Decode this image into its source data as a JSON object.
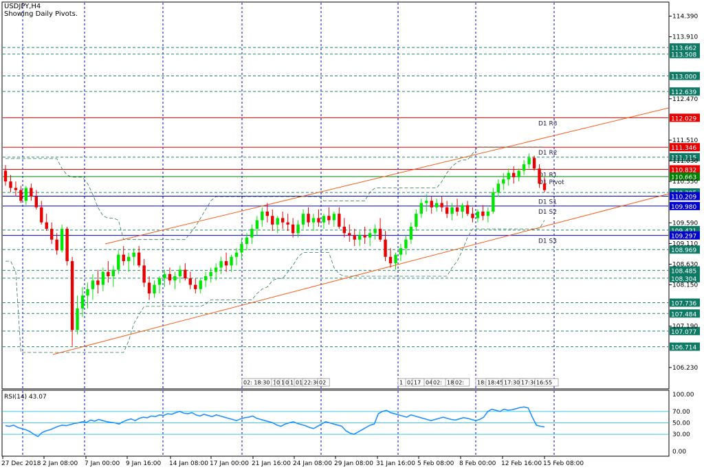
{
  "header": {
    "symbol": "USDJPY,H4",
    "subtitle": "Showing Daily Pivots."
  },
  "rsi": {
    "label": "RSI(14) 43.07",
    "levels": [
      100.0,
      70.0,
      50.0,
      30.0,
      0.0
    ],
    "level_labels": [
      "100.00",
      "70.00",
      "50.00",
      "30.00",
      "0.00"
    ],
    "bands": [
      70,
      50,
      30
    ],
    "values": [
      45,
      44,
      46,
      42,
      40,
      38,
      35,
      30,
      26,
      33,
      36,
      38,
      41,
      44,
      46,
      45,
      47,
      49,
      50,
      52,
      51,
      55,
      53,
      56,
      54,
      52,
      51,
      50,
      48,
      52,
      55,
      57,
      54,
      58,
      60,
      59,
      62,
      61,
      64,
      63,
      66,
      65,
      68,
      70,
      67,
      66,
      68,
      64,
      62,
      65,
      63,
      61,
      64,
      62,
      60,
      58,
      56,
      54,
      57,
      59,
      60,
      62,
      58,
      56,
      54,
      52,
      50,
      46,
      44,
      48,
      50,
      52,
      49,
      47,
      45,
      42,
      40,
      44,
      48,
      52,
      50,
      48,
      46,
      44,
      36,
      32,
      30,
      34,
      38,
      42,
      46,
      48,
      66,
      70,
      72,
      68,
      66,
      64,
      62,
      60,
      64,
      62,
      60,
      58,
      56,
      54,
      56,
      58,
      60,
      58,
      56,
      55,
      57,
      59,
      58,
      56,
      54,
      56,
      60,
      70,
      74,
      72,
      70,
      74,
      72,
      73,
      75,
      77,
      78,
      76,
      60,
      46,
      44,
      43
    ]
  },
  "colors": {
    "bull": "#00e600",
    "bear": "#e60000",
    "pivot_red": "#e60000",
    "pivot_green": "#008000",
    "pivot_blue": "#0000cc",
    "channel": "#ff5a1a",
    "grid": "#0000cc",
    "level_dash": "#1a8a6a",
    "label_bg": "#0e7a66",
    "rsi_line": "#1e90ff",
    "rsi_band": "#3cc8e6"
  },
  "chart_data": {
    "type": "candlestick",
    "title": "USDJPY,H4",
    "ylim": [
      105.75,
      114.7
    ],
    "y_ticks": [
      "114.390",
      "113.910",
      "112.470",
      "111.510",
      "111.030",
      "110.550",
      "109.590",
      "109.110",
      "108.630",
      "108.150",
      "107.190",
      "106.230"
    ],
    "y_tick_values": [
      114.39,
      113.91,
      112.47,
      111.51,
      111.03,
      110.55,
      109.59,
      109.11,
      108.63,
      108.15,
      107.19,
      106.23
    ],
    "x_labels": [
      "27 Dec 2018",
      "2 Jan 08:00",
      "7 Jan 00:00",
      "9 Jan 16:00",
      "14 Jan 08:00",
      "17 Jan 00:00",
      "21 Jan 16:00",
      "24 Jan 08:00",
      "29 Jan 08:00",
      "31 Jan 16:00",
      "5 Feb 08:00",
      "8 Feb 00:00",
      "12 Feb 16:00",
      "15 Feb 08:00"
    ],
    "pivots": [
      {
        "name": "D1 R3",
        "value": 112.029,
        "label": "112.029",
        "color": "red"
      },
      {
        "name": "D1 R2",
        "value": 111.346,
        "label": "111.346",
        "color": "red"
      },
      {
        "name": "D1 R1",
        "value": 110.832,
        "label": "110.832",
        "color": "red"
      },
      {
        "name": "D1 Pivot",
        "value": 110.663,
        "label": "110.663",
        "color": "green"
      },
      {
        "name": "D1 S1",
        "value": 110.209,
        "label": "110.209",
        "color": "blue"
      },
      {
        "name": "D1 S2",
        "value": 109.98,
        "label": "109.980",
        "color": "blue"
      },
      {
        "name": "D1 S3",
        "value": 109.297,
        "label": "109.297",
        "color": "blue"
      }
    ],
    "horizontal_levels": [
      {
        "value": 113.662,
        "label": "113.662"
      },
      {
        "value": 113.508,
        "label": "113.508"
      },
      {
        "value": 113.0,
        "label": "113.000"
      },
      {
        "value": 112.639,
        "label": "112.639"
      },
      {
        "value": 111.115,
        "label": "111.115"
      },
      {
        "value": 110.295,
        "label": "110.295"
      },
      {
        "value": 109.421,
        "label": "109.421"
      },
      {
        "value": 108.969,
        "label": "108.969"
      },
      {
        "value": 108.485,
        "label": "108.485"
      },
      {
        "value": 108.304,
        "label": "108.304"
      },
      {
        "value": 107.736,
        "label": "107.736"
      },
      {
        "value": 107.484,
        "label": "107.484"
      },
      {
        "value": 107.077,
        "label": "107.077"
      },
      {
        "value": 106.714,
        "label": "106.714"
      }
    ],
    "time_marks": [
      "02: 18:30",
      "1",
      "0",
      "1",
      "0",
      "1",
      "01",
      "22:30",
      "02",
      "1",
      "02:",
      "17",
      "04:0",
      "02:",
      "18:30",
      "02:",
      "18:15",
      "18:45",
      "17:30",
      "17:30",
      "16:55"
    ],
    "candles": [
      [
        110.8,
        110.93,
        110.45,
        110.55
      ],
      [
        110.55,
        110.7,
        110.3,
        110.4
      ],
      [
        110.4,
        110.55,
        110.2,
        110.35
      ],
      [
        110.35,
        110.45,
        110.05,
        110.1
      ],
      [
        110.1,
        110.45,
        110.0,
        110.4
      ],
      [
        110.4,
        110.5,
        110.1,
        110.2
      ],
      [
        110.2,
        110.35,
        109.9,
        109.95
      ],
      [
        109.95,
        110.1,
        109.55,
        109.6
      ],
      [
        109.6,
        109.8,
        109.4,
        109.45
      ],
      [
        109.45,
        109.6,
        109.1,
        109.2
      ],
      [
        109.2,
        109.35,
        108.85,
        108.95
      ],
      [
        108.95,
        109.55,
        108.9,
        109.45
      ],
      [
        109.45,
        109.5,
        108.6,
        108.7
      ],
      [
        108.7,
        108.8,
        106.73,
        107.1
      ],
      [
        107.1,
        107.9,
        107.0,
        107.6
      ],
      [
        107.6,
        108.1,
        107.4,
        107.9
      ],
      [
        107.9,
        108.2,
        107.6,
        108.05
      ],
      [
        108.05,
        108.4,
        107.8,
        108.25
      ],
      [
        108.25,
        108.5,
        107.95,
        108.15
      ],
      [
        108.15,
        108.55,
        108.0,
        108.45
      ],
      [
        108.45,
        108.7,
        108.2,
        108.35
      ],
      [
        108.35,
        108.6,
        108.1,
        108.5
      ],
      [
        108.5,
        108.95,
        108.4,
        108.85
      ],
      [
        108.85,
        109.05,
        108.6,
        108.7
      ],
      [
        108.7,
        108.9,
        108.45,
        108.8
      ],
      [
        108.8,
        109.0,
        108.6,
        108.9
      ],
      [
        108.9,
        109.05,
        108.55,
        108.6
      ],
      [
        108.6,
        108.75,
        108.1,
        108.2
      ],
      [
        108.2,
        108.35,
        107.8,
        107.95
      ],
      [
        107.95,
        108.25,
        107.85,
        108.15
      ],
      [
        108.15,
        108.35,
        107.95,
        108.3
      ],
      [
        108.3,
        108.5,
        108.1,
        108.4
      ],
      [
        108.4,
        108.55,
        108.15,
        108.25
      ],
      [
        108.25,
        108.45,
        108.05,
        108.35
      ],
      [
        108.35,
        108.6,
        108.2,
        108.5
      ],
      [
        108.5,
        108.65,
        108.25,
        108.3
      ],
      [
        108.3,
        108.45,
        108.05,
        108.15
      ],
      [
        108.15,
        108.3,
        107.95,
        108.05
      ],
      [
        108.05,
        108.3,
        107.95,
        108.25
      ],
      [
        108.25,
        108.45,
        108.1,
        108.35
      ],
      [
        108.35,
        108.55,
        108.2,
        108.45
      ],
      [
        108.45,
        108.65,
        108.25,
        108.55
      ],
      [
        108.55,
        108.8,
        108.4,
        108.7
      ],
      [
        108.7,
        108.9,
        108.45,
        108.6
      ],
      [
        108.6,
        108.85,
        108.45,
        108.8
      ],
      [
        108.8,
        109.0,
        108.6,
        108.9
      ],
      [
        108.9,
        109.2,
        108.75,
        109.1
      ],
      [
        109.1,
        109.35,
        108.95,
        109.25
      ],
      [
        109.25,
        109.55,
        109.1,
        109.45
      ],
      [
        109.45,
        109.75,
        109.3,
        109.65
      ],
      [
        109.65,
        109.95,
        109.5,
        109.85
      ],
      [
        109.85,
        110.05,
        109.6,
        109.75
      ],
      [
        109.75,
        109.9,
        109.4,
        109.55
      ],
      [
        109.55,
        109.75,
        109.35,
        109.7
      ],
      [
        109.7,
        109.85,
        109.45,
        109.6
      ],
      [
        109.6,
        109.8,
        109.4,
        109.55
      ],
      [
        109.55,
        109.7,
        109.25,
        109.35
      ],
      [
        109.35,
        109.65,
        109.25,
        109.55
      ],
      [
        109.55,
        109.9,
        109.45,
        109.8
      ],
      [
        109.8,
        109.95,
        109.5,
        109.6
      ],
      [
        109.6,
        109.8,
        109.4,
        109.7
      ],
      [
        109.7,
        109.9,
        109.5,
        109.6
      ],
      [
        109.6,
        109.8,
        109.45,
        109.75
      ],
      [
        109.75,
        109.95,
        109.55,
        109.65
      ],
      [
        109.65,
        109.85,
        109.5,
        109.8
      ],
      [
        109.8,
        109.95,
        109.45,
        109.5
      ],
      [
        109.5,
        109.7,
        109.25,
        109.35
      ],
      [
        109.35,
        109.55,
        109.15,
        109.3
      ],
      [
        109.3,
        109.45,
        109.05,
        109.2
      ],
      [
        109.2,
        109.4,
        109.05,
        109.3
      ],
      [
        109.3,
        109.5,
        109.1,
        109.25
      ],
      [
        109.25,
        109.45,
        109.05,
        109.35
      ],
      [
        109.35,
        109.55,
        109.2,
        109.45
      ],
      [
        109.45,
        109.7,
        109.15,
        109.2
      ],
      [
        109.2,
        109.4,
        108.7,
        108.8
      ],
      [
        108.8,
        109.0,
        108.55,
        108.65
      ],
      [
        108.65,
        108.9,
        108.5,
        108.85
      ],
      [
        108.85,
        109.1,
        108.7,
        109.0
      ],
      [
        109.0,
        109.3,
        108.85,
        109.2
      ],
      [
        109.2,
        109.6,
        109.1,
        109.5
      ],
      [
        109.5,
        109.9,
        109.4,
        109.8
      ],
      [
        109.8,
        110.15,
        109.7,
        110.05
      ],
      [
        110.05,
        110.25,
        109.85,
        110.1
      ],
      [
        110.1,
        110.2,
        109.8,
        109.95
      ],
      [
        109.95,
        110.15,
        109.85,
        110.05
      ],
      [
        110.05,
        110.2,
        109.85,
        109.95
      ],
      [
        109.95,
        110.1,
        109.7,
        109.8
      ],
      [
        109.8,
        110.05,
        109.65,
        109.95
      ],
      [
        109.95,
        110.15,
        109.75,
        109.85
      ],
      [
        109.85,
        110.05,
        109.7,
        110.0
      ],
      [
        110.0,
        110.1,
        109.75,
        109.8
      ],
      [
        109.8,
        109.95,
        109.6,
        109.7
      ],
      [
        109.7,
        109.9,
        109.6,
        109.85
      ],
      [
        109.85,
        110.0,
        109.65,
        109.75
      ],
      [
        109.75,
        109.95,
        109.6,
        109.85
      ],
      [
        109.85,
        110.4,
        109.8,
        110.3
      ],
      [
        110.3,
        110.6,
        110.2,
        110.5
      ],
      [
        110.5,
        110.75,
        110.35,
        110.6
      ],
      [
        110.6,
        110.85,
        110.45,
        110.75
      ],
      [
        110.75,
        110.9,
        110.5,
        110.65
      ],
      [
        110.65,
        110.85,
        110.55,
        110.8
      ],
      [
        110.8,
        111.05,
        110.7,
        110.95
      ],
      [
        110.95,
        111.2,
        110.85,
        111.1
      ],
      [
        111.1,
        111.15,
        110.8,
        110.85
      ],
      [
        110.85,
        110.95,
        110.4,
        110.5
      ],
      [
        110.5,
        110.65,
        110.3,
        110.35
      ]
    ]
  }
}
